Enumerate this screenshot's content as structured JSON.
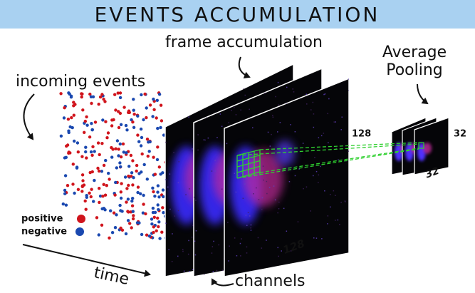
{
  "header": {
    "title": "EVENTS ACCUMULATION"
  },
  "labels": {
    "incoming": "incoming events",
    "frame": "frame accumulation",
    "pooling": [
      "Average",
      "Pooling"
    ],
    "time": "time",
    "channels": "channels"
  },
  "legend": {
    "positive": "positive",
    "negative": "negative"
  },
  "dims": {
    "frame_height": 128,
    "frame_width": 128,
    "pooled_height": 32,
    "pooled_width": 32
  }
}
